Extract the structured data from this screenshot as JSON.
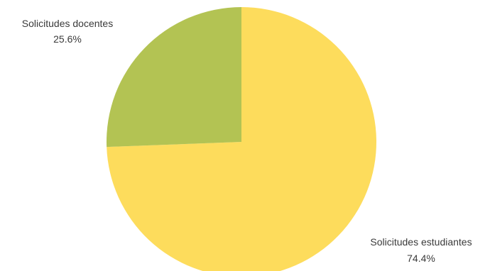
{
  "chart_data": {
    "type": "pie",
    "slices": [
      {
        "label": "Solicitudes estudiantes",
        "percent_label": "74.4%",
        "value": 74.4,
        "color": "#fddc5c"
      },
      {
        "label": "Solicitudes docentes",
        "percent_label": "25.6%",
        "value": 25.6,
        "color": "#b3c353"
      }
    ],
    "start_angle_deg": 0,
    "direction": "clockwise",
    "legend": "none"
  }
}
